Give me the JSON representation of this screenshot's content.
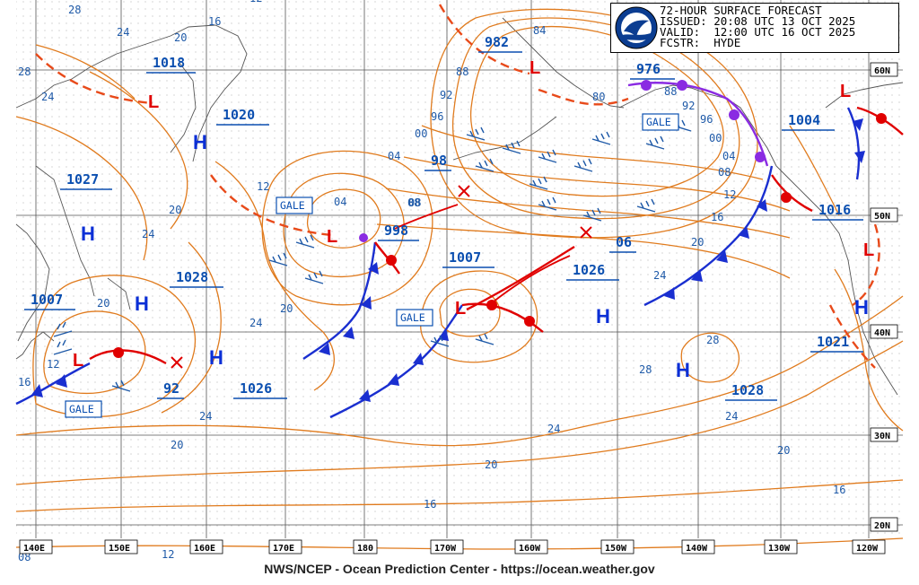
{
  "header": {
    "title": "72-HOUR SURFACE FORECAST",
    "issued": "ISSUED: 20:08 UTC 13 OCT 2025",
    "valid": "VALID:  12:00 UTC 16 OCT 2025",
    "forecaster": "FCSTR:  HYDE"
  },
  "logo": {
    "icon": "noaa-logo-icon"
  },
  "footer": {
    "credit": "NWS/NCEP - Ocean Prediction Center - https://ocean.weather.gov"
  },
  "latitude_labels": [
    "60N",
    "50N",
    "40N",
    "30N",
    "20N"
  ],
  "longitude_labels": [
    "140E",
    "150E",
    "160E",
    "170E",
    "180",
    "170W",
    "160W",
    "150W",
    "140W",
    "130W",
    "120W"
  ],
  "pressure_centers": [
    {
      "type": "L",
      "label": "982"
    },
    {
      "type": "L",
      "label": "976"
    },
    {
      "type": "L",
      "label": "1018"
    },
    {
      "type": "L",
      "label": "998"
    },
    {
      "type": "L",
      "label": "1007"
    },
    {
      "type": "L",
      "label": "1007"
    },
    {
      "type": "H",
      "label": "1020"
    },
    {
      "type": "H",
      "label": "1027"
    },
    {
      "type": "H",
      "label": "1028"
    },
    {
      "type": "H",
      "label": "1026"
    },
    {
      "type": "H",
      "label": "1026"
    },
    {
      "type": "H",
      "label": "1028"
    },
    {
      "type": "H",
      "label": "1021"
    },
    {
      "type": "L",
      "label": "1004"
    },
    {
      "type": "L",
      "label": "1016"
    },
    {
      "type": "X",
      "label": "98"
    },
    {
      "type": "X",
      "label": "06"
    },
    {
      "type": "X",
      "label": "92"
    }
  ],
  "gale_labels": [
    "GALE",
    "GALE",
    "GALE",
    "GALE"
  ],
  "isobar_labels": [
    "28",
    "24",
    "20",
    "16",
    "12",
    "12",
    "28",
    "24",
    "84",
    "88",
    "92",
    "96",
    "00",
    "04",
    "08",
    "80",
    "88",
    "92",
    "96",
    "00",
    "04",
    "08",
    "12",
    "16",
    "20",
    "24",
    "04",
    "08",
    "20",
    "24",
    "20",
    "24",
    "12",
    "16",
    "20",
    "24",
    "28",
    "28",
    "24",
    "20",
    "16",
    "16",
    "12",
    "08",
    "20",
    "24",
    "20"
  ]
}
